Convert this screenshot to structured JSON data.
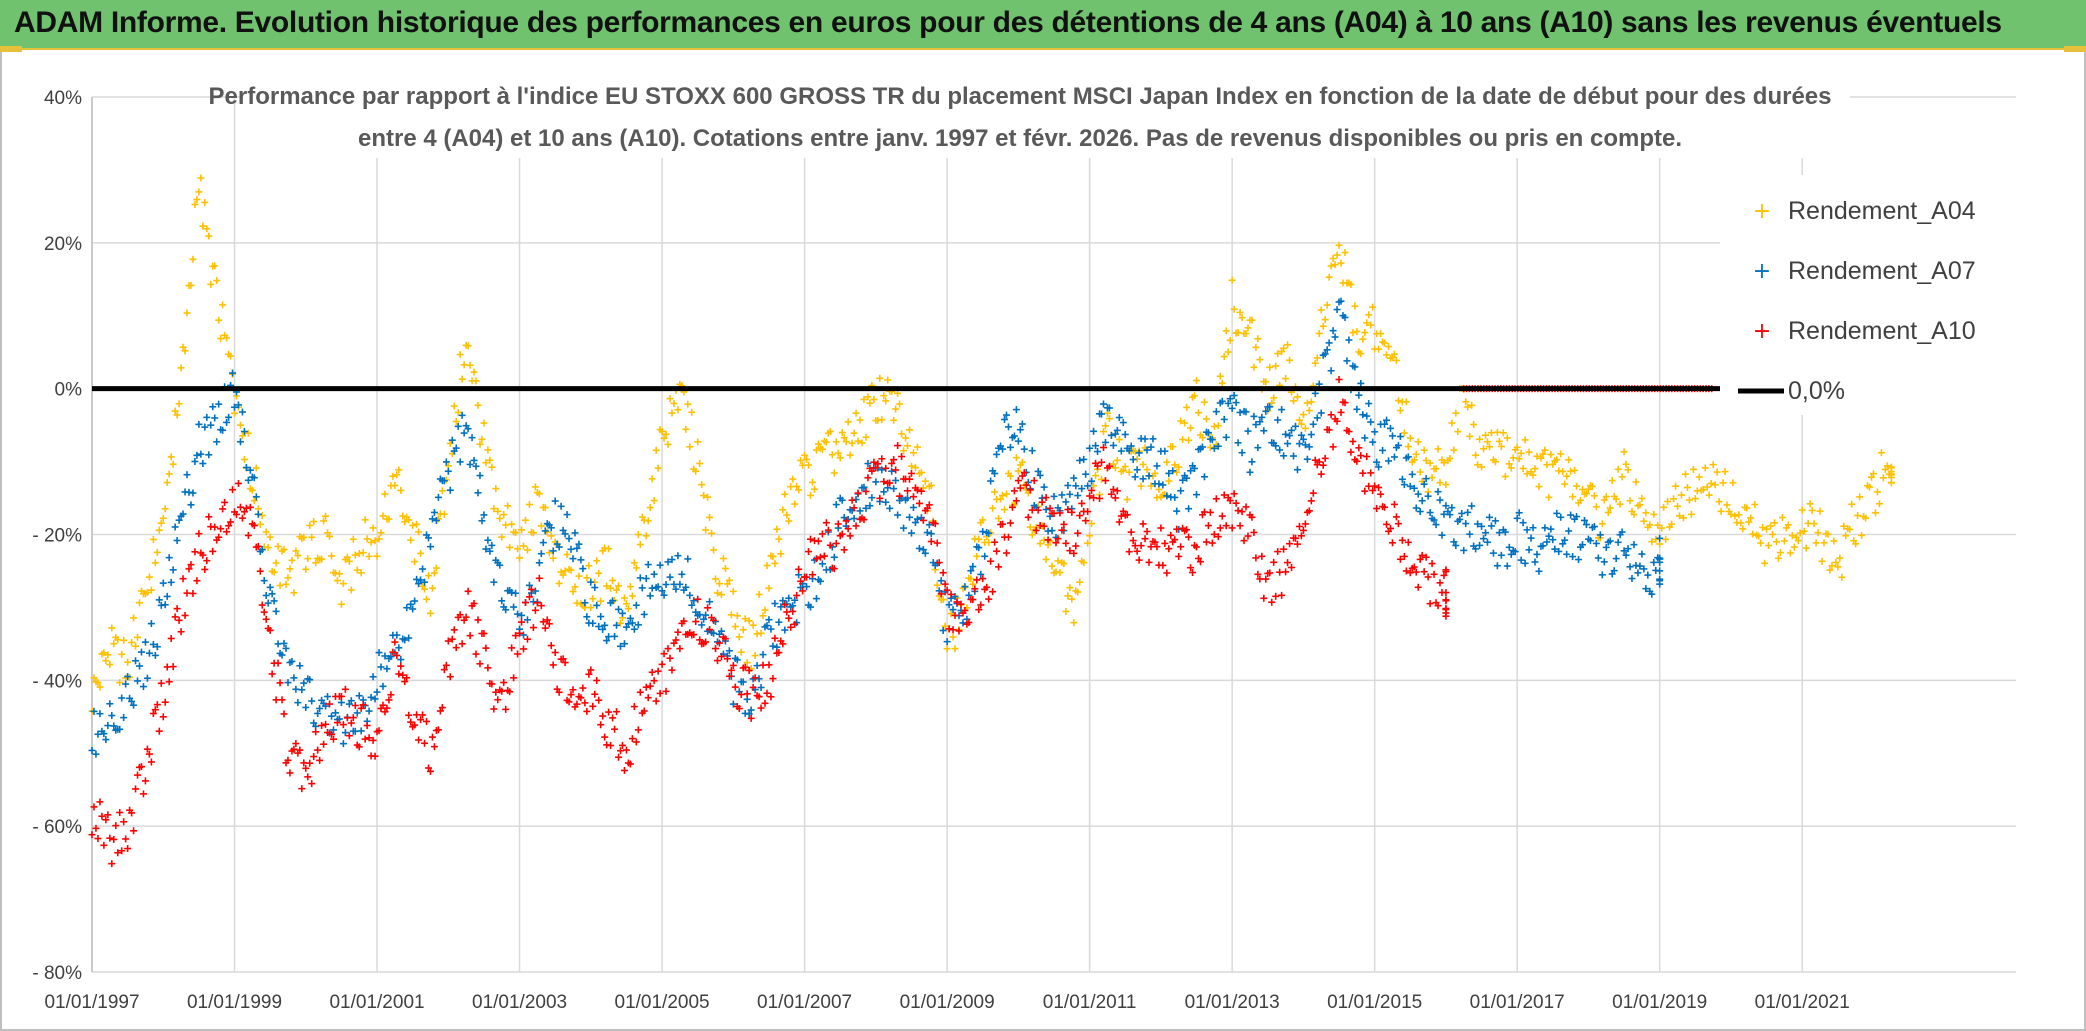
{
  "banner": {
    "title": "ADAM Informe. Evolution historique des performances en euros pour des détentions de 4 ans (A04) à 10 ans (A10) sans les revenus éventuels"
  },
  "colors": {
    "banner_bg": "#70c26e",
    "banner_accent": "#e8c13a",
    "a04": "#ffc000",
    "a07": "#0070c0",
    "a10": "#ff0000",
    "zero_line": "#000000"
  },
  "chart_data": {
    "type": "scatter",
    "title_lines": [
      "Performance par rapport à l'indice EU STOXX 600 GROSS TR  du placement MSCI Japan Index en fonction de la date de début pour des durées",
      "entre 4 (A04) et 10 ans (A10). Cotations entre janv. 1997 et févr. 2026. Pas de revenus disponibles ou pris en compte."
    ],
    "x_range": [
      1997.0,
      2024.0
    ],
    "y_range": [
      -80,
      40
    ],
    "y_ticks": [
      {
        "value": 40,
        "label": "40%"
      },
      {
        "value": 20,
        "label": "20%"
      },
      {
        "value": 0,
        "label": "0%"
      },
      {
        "value": -20,
        "label": "- 20%"
      },
      {
        "value": -40,
        "label": "- 40%"
      },
      {
        "value": -60,
        "label": "- 60%"
      },
      {
        "value": -80,
        "label": "- 80%"
      }
    ],
    "x_ticks": [
      {
        "value": 1997,
        "label": "01/01/1997"
      },
      {
        "value": 1999,
        "label": "01/01/1999"
      },
      {
        "value": 2001,
        "label": "01/01/2001"
      },
      {
        "value": 2003,
        "label": "01/01/2003"
      },
      {
        "value": 2005,
        "label": "01/01/2005"
      },
      {
        "value": 2007,
        "label": "01/01/2007"
      },
      {
        "value": 2009,
        "label": "01/01/2009"
      },
      {
        "value": 2011,
        "label": "01/01/2011"
      },
      {
        "value": 2013,
        "label": "01/01/2013"
      },
      {
        "value": 2015,
        "label": "01/01/2015"
      },
      {
        "value": 2017,
        "label": "01/01/2017"
      },
      {
        "value": 2019,
        "label": "01/01/2019"
      },
      {
        "value": 2021,
        "label": "01/01/2021"
      }
    ],
    "legend": [
      "Rendement_A04",
      "Rendement_A07",
      "Rendement_A10",
      "0,0%"
    ],
    "series": [
      {
        "name": "Rendement_A04",
        "x": [
          1997.0,
          1997.25,
          1997.5,
          1997.75,
          1998.0,
          1998.25,
          1998.5,
          1998.75,
          1999.0,
          1999.25,
          1999.5,
          1999.75,
          2000.0,
          2000.25,
          2000.5,
          2000.75,
          2001.0,
          2001.25,
          2001.5,
          2001.75,
          2002.0,
          2002.25,
          2002.5,
          2002.75,
          2003.0,
          2003.25,
          2003.5,
          2003.75,
          2004.0,
          2004.25,
          2004.5,
          2004.75,
          2005.0,
          2005.25,
          2005.5,
          2005.75,
          2006.0,
          2006.25,
          2006.5,
          2006.75,
          2007.0,
          2007.25,
          2007.5,
          2007.75,
          2008.0,
          2008.25,
          2008.5,
          2008.75,
          2009.0,
          2009.25,
          2009.5,
          2009.75,
          2010.0,
          2010.25,
          2010.5,
          2010.75,
          2011.0,
          2011.25,
          2011.5,
          2011.75,
          2012.0,
          2012.25,
          2012.5,
          2012.75,
          2013.0,
          2013.25,
          2013.5,
          2013.75,
          2014.0,
          2014.25,
          2014.5,
          2014.75,
          2015.0,
          2015.25,
          2015.5,
          2015.75,
          2016.0,
          2016.25,
          2016.5,
          2016.75,
          2017.0,
          2017.25,
          2017.5,
          2017.75,
          2018.0,
          2018.25,
          2018.5,
          2018.75,
          2019.0,
          2019.25,
          2019.5,
          2019.75,
          2020.0,
          2020.25,
          2020.5,
          2020.75,
          2021.0,
          2021.25,
          2021.5,
          2021.75,
          2022.0,
          2022.25
        ],
        "y": [
          -42,
          -36,
          -38,
          -28,
          -18,
          2,
          28,
          12,
          0,
          -12,
          -22,
          -26,
          -22,
          -20,
          -28,
          -22,
          -20,
          -12,
          -20,
          -28,
          -12,
          8,
          -8,
          -18,
          -22,
          -16,
          -24,
          -26,
          -28,
          -24,
          -32,
          -18,
          -8,
          0,
          -10,
          -24,
          -30,
          -36,
          -26,
          -16,
          -12,
          -10,
          -8,
          -5,
          -2,
          -2,
          -8,
          -14,
          -36,
          -28,
          -20,
          -16,
          -12,
          -18,
          -22,
          -30,
          -18,
          -6,
          -12,
          -10,
          -12,
          -8,
          -2,
          -8,
          12,
          8,
          0,
          4,
          -5,
          10,
          20,
          8,
          8,
          4,
          -6,
          -12,
          -10,
          0,
          -10,
          -8,
          -10,
          -10,
          -12,
          -12,
          -16,
          -18,
          -12,
          -16,
          -20,
          -16,
          -14,
          -12,
          -16,
          -18,
          -22,
          -20,
          -18,
          -20,
          -24,
          -18,
          -14,
          -10
        ]
      },
      {
        "name": "Rendement_A07",
        "x": [
          1997.0,
          1997.25,
          1997.5,
          1997.75,
          1998.0,
          1998.25,
          1998.5,
          1998.75,
          1999.0,
          1999.25,
          1999.5,
          1999.75,
          2000.0,
          2000.25,
          2000.5,
          2000.75,
          2001.0,
          2001.25,
          2001.5,
          2001.75,
          2002.0,
          2002.25,
          2002.5,
          2002.75,
          2003.0,
          2003.25,
          2003.5,
          2003.75,
          2004.0,
          2004.25,
          2004.5,
          2004.75,
          2005.0,
          2005.25,
          2005.5,
          2005.75,
          2006.0,
          2006.25,
          2006.5,
          2006.75,
          2007.0,
          2007.25,
          2007.5,
          2007.75,
          2008.0,
          2008.25,
          2008.5,
          2008.75,
          2009.0,
          2009.25,
          2009.5,
          2009.75,
          2010.0,
          2010.25,
          2010.5,
          2010.75,
          2011.0,
          2011.25,
          2011.5,
          2011.75,
          2012.0,
          2012.25,
          2012.5,
          2012.75,
          2013.0,
          2013.25,
          2013.5,
          2013.75,
          2014.0,
          2014.25,
          2014.5,
          2014.75,
          2015.0,
          2015.25,
          2015.5,
          2015.75,
          2016.0,
          2016.25,
          2016.5,
          2016.75,
          2017.0,
          2017.25,
          2017.5,
          2017.75,
          2018.0,
          2018.25,
          2018.5,
          2018.75,
          2019.0
        ],
        "y": [
          -48,
          -45,
          -42,
          -38,
          -30,
          -18,
          -8,
          -4,
          0,
          -14,
          -28,
          -38,
          -42,
          -44,
          -46,
          -44,
          -40,
          -36,
          -30,
          -20,
          -12,
          -4,
          -18,
          -28,
          -32,
          -26,
          -18,
          -22,
          -30,
          -32,
          -34,
          -28,
          -26,
          -24,
          -30,
          -34,
          -40,
          -42,
          -34,
          -30,
          -28,
          -24,
          -18,
          -14,
          -12,
          -14,
          -18,
          -22,
          -32,
          -30,
          -22,
          -8,
          -4,
          -14,
          -18,
          -16,
          -10,
          -4,
          -8,
          -10,
          -10,
          -16,
          -12,
          -6,
          -2,
          -8,
          -4,
          -6,
          -10,
          0,
          10,
          0,
          -8,
          -6,
          -12,
          -16,
          -18,
          -20,
          -18,
          -22,
          -20,
          -22,
          -20,
          -20,
          -20,
          -24,
          -22,
          -26,
          -24
        ]
      },
      {
        "name": "Rendement_A10",
        "x": [
          1997.0,
          1997.25,
          1997.5,
          1997.75,
          1998.0,
          1998.25,
          1998.5,
          1998.75,
          1999.0,
          1999.25,
          1999.5,
          1999.75,
          2000.0,
          2000.25,
          2000.5,
          2000.75,
          2001.0,
          2001.25,
          2001.5,
          2001.75,
          2002.0,
          2002.25,
          2002.5,
          2002.75,
          2003.0,
          2003.25,
          2003.5,
          2003.75,
          2004.0,
          2004.25,
          2004.5,
          2004.75,
          2005.0,
          2005.25,
          2005.5,
          2005.75,
          2006.0,
          2006.25,
          2006.5,
          2006.75,
          2007.0,
          2007.25,
          2007.5,
          2007.75,
          2008.0,
          2008.25,
          2008.5,
          2008.75,
          2009.0,
          2009.25,
          2009.5,
          2009.75,
          2010.0,
          2010.25,
          2010.5,
          2010.75,
          2011.0,
          2011.25,
          2011.5,
          2011.75,
          2012.0,
          2012.25,
          2012.5,
          2012.75,
          2013.0,
          2013.25,
          2013.5,
          2013.75,
          2014.0,
          2014.25,
          2014.5,
          2014.75,
          2015.0,
          2015.25,
          2015.5,
          2015.75,
          2016.0
        ],
        "y": [
          -58,
          -62,
          -60,
          -52,
          -42,
          -30,
          -22,
          -20,
          -14,
          -20,
          -34,
          -50,
          -54,
          -46,
          -44,
          -46,
          -48,
          -38,
          -44,
          -50,
          -38,
          -30,
          -36,
          -44,
          -34,
          -28,
          -38,
          -42,
          -42,
          -46,
          -50,
          -42,
          -40,
          -34,
          -32,
          -34,
          -40,
          -42,
          -40,
          -32,
          -26,
          -20,
          -22,
          -16,
          -12,
          -10,
          -14,
          -18,
          -30,
          -32,
          -28,
          -22,
          -14,
          -16,
          -20,
          -20,
          -14,
          -10,
          -20,
          -22,
          -22,
          -22,
          -22,
          -18,
          -16,
          -20,
          -28,
          -24,
          -18,
          -10,
          -2,
          -8,
          -14,
          -18,
          -24,
          -26,
          -28
        ]
      },
      {
        "name": "Rendement_A10_zero_run",
        "x_range": [
          2016.25,
          2019.75
        ],
        "y": 0
      }
    ],
    "zero_line": {
      "value": 0,
      "label": "0,0%"
    }
  }
}
